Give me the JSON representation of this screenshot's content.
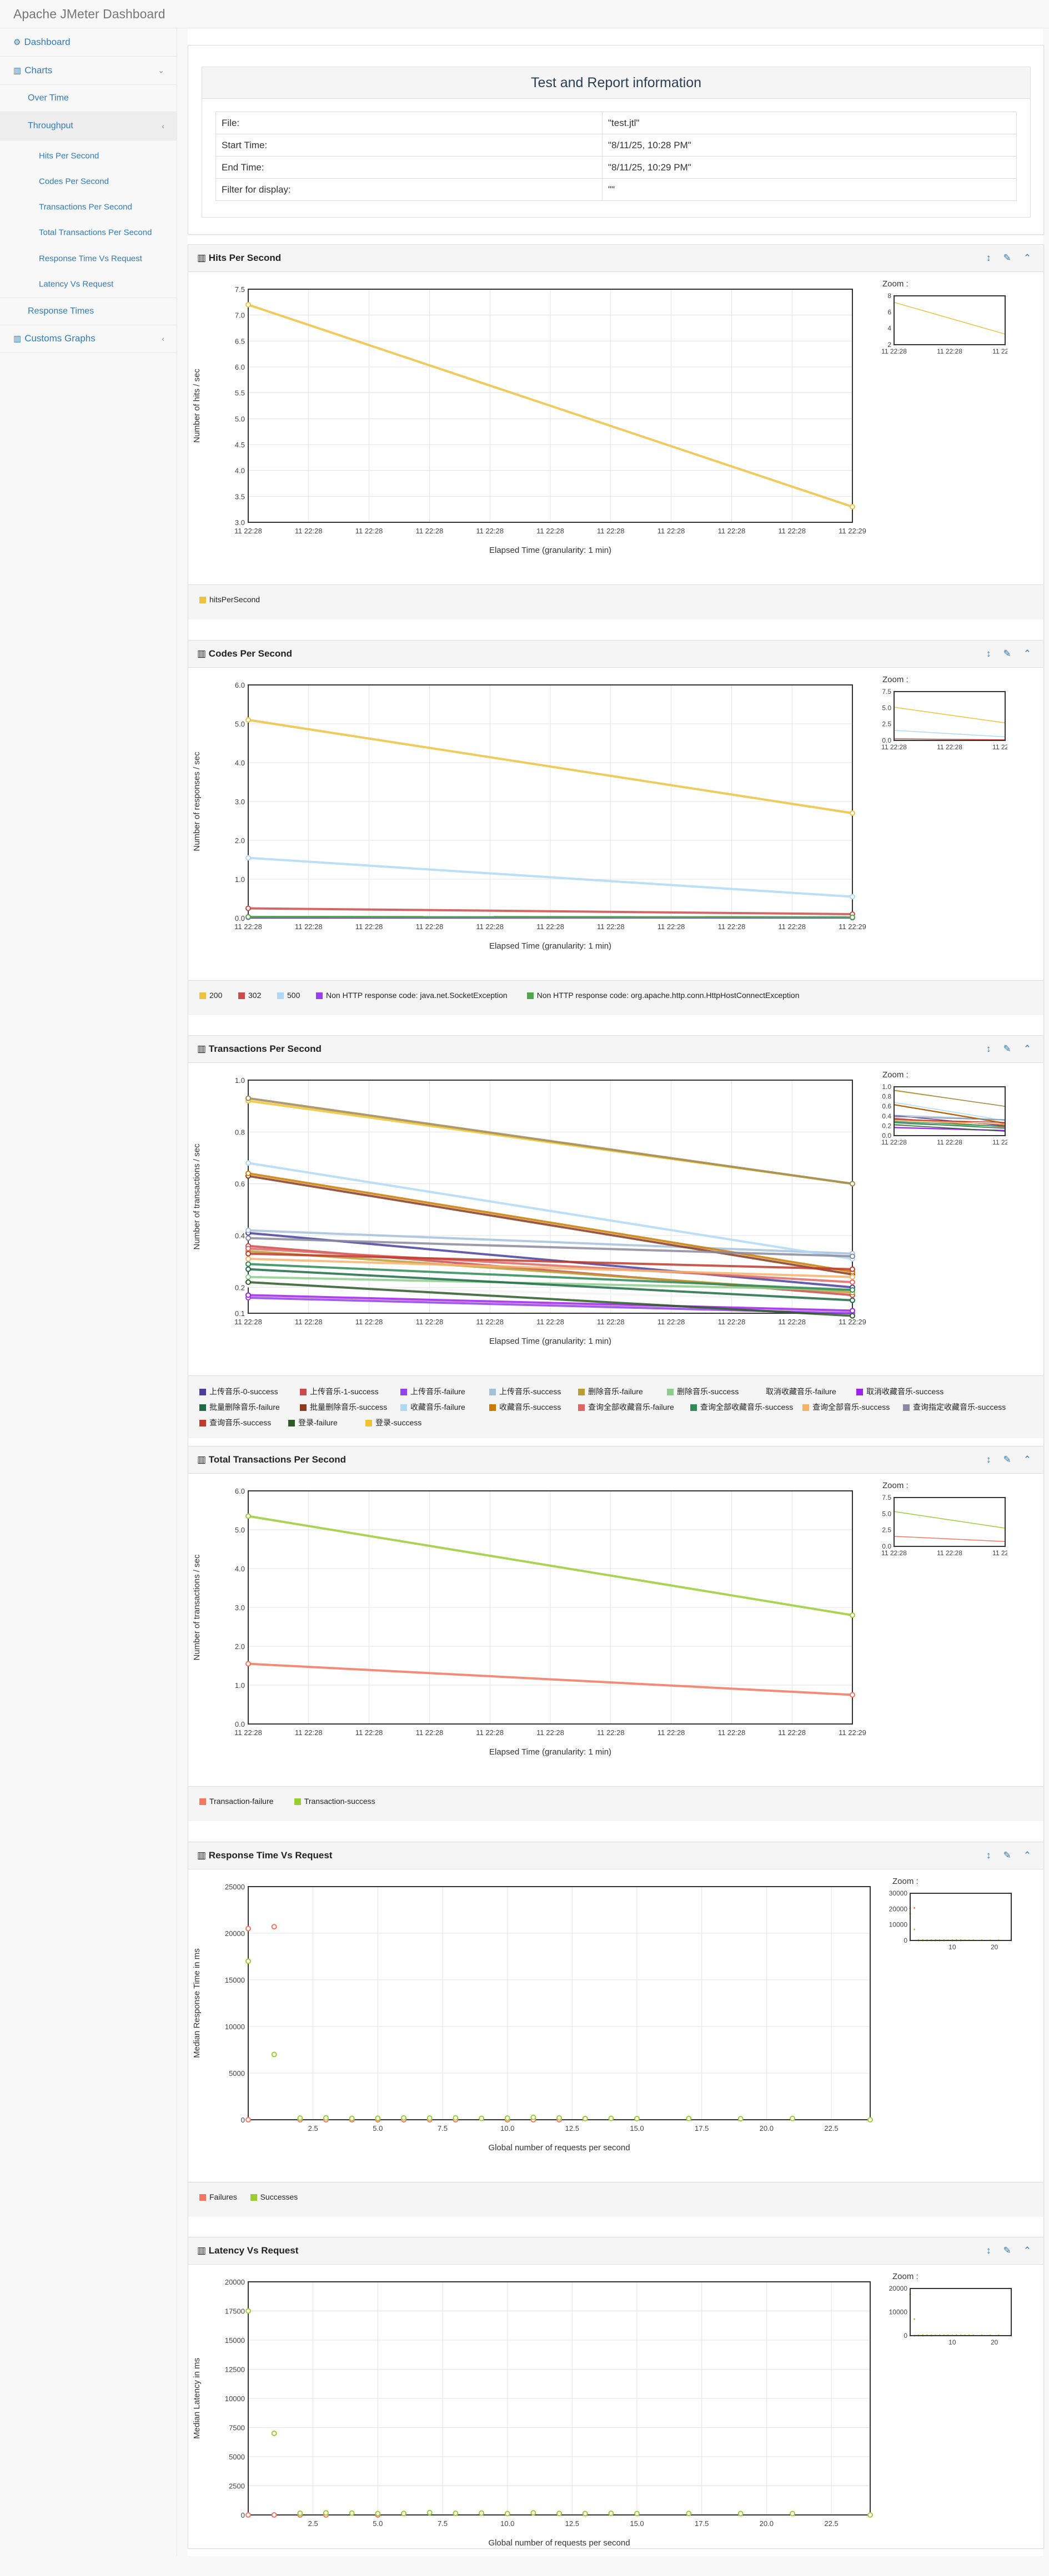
{
  "app": {
    "title": "Apache JMeter Dashboard"
  },
  "sidebar": {
    "dashboard": "Dashboard",
    "charts": "Charts",
    "over_time": "Over Time",
    "throughput": "Throughput",
    "throughput_items": [
      "Hits Per Second",
      "Codes Per Second",
      "Transactions Per Second",
      "Total Transactions Per Second",
      "Response Time Vs Request",
      "Latency Vs Request"
    ],
    "response_times": "Response Times",
    "customs_graphs": "Customs Graphs"
  },
  "info": {
    "title": "Test and Report information",
    "rows": [
      [
        "File:",
        "\"test.jtl\""
      ],
      [
        "Start Time:",
        "\"8/11/25, 10:28 PM\""
      ],
      [
        "End Time:",
        "\"8/11/25, 10:29 PM\""
      ],
      [
        "Filter for display:",
        "\"\""
      ]
    ]
  },
  "zoom_label": "Zoom :",
  "colors": {
    "accent": "#337ab7"
  },
  "chart_data": [
    {
      "id": "hits",
      "type": "line",
      "title": "Hits Per Second",
      "ylabel": "Number of hits / sec",
      "xlabel": "Elapsed Time (granularity: 1 min)",
      "ylim": [
        3,
        7.5
      ],
      "yticks": [
        "3.0",
        "3.5",
        "4.0",
        "4.5",
        "5.0",
        "5.5",
        "6.0",
        "6.5",
        "7.0",
        "7.5"
      ],
      "xticks": [
        "11 22:28",
        "11 22:28",
        "11 22:28",
        "11 22:28",
        "11 22:28",
        "11 22:28",
        "11 22:28",
        "11 22:28",
        "11 22:28",
        "11 22:28",
        "11 22:29"
      ],
      "zoom_yticks": [
        "2",
        "4",
        "6",
        "8"
      ],
      "zoom_ylim": [
        2,
        8
      ],
      "zoom_xticks": [
        "11 22:28",
        "11 22:28",
        "11 22:29"
      ],
      "series": [
        {
          "name": "hitsPerSecond",
          "color": "#edc240",
          "values": [
            7.2,
            3.3
          ]
        }
      ]
    },
    {
      "id": "codes",
      "type": "line",
      "title": "Codes Per Second",
      "ylabel": "Number of responses / sec",
      "xlabel": "Elapsed Time (granularity: 1 min)",
      "ylim": [
        0,
        6
      ],
      "yticks": [
        "0.0",
        "1.0",
        "2.0",
        "3.0",
        "4.0",
        "5.0",
        "6.0"
      ],
      "xticks": [
        "11 22:28",
        "11 22:28",
        "11 22:28",
        "11 22:28",
        "11 22:28",
        "11 22:28",
        "11 22:28",
        "11 22:28",
        "11 22:28",
        "11 22:28",
        "11 22:29"
      ],
      "zoom_yticks": [
        "0.0",
        "2.5",
        "5.0",
        "7.5"
      ],
      "zoom_ylim": [
        0,
        7.5
      ],
      "zoom_xticks": [
        "11 22:28",
        "11 22:28",
        "11 22:29"
      ],
      "series": [
        {
          "name": "200",
          "color": "#edc240",
          "values": [
            5.1,
            2.7
          ]
        },
        {
          "name": "302",
          "color": "#cb4b4b",
          "values": [
            0.25,
            0.1
          ]
        },
        {
          "name": "500",
          "color": "#afd8f8",
          "values": [
            1.55,
            0.55
          ]
        },
        {
          "name": "Non HTTP response code: java.net.SocketException",
          "color": "#9440ed",
          "values": [
            0.02,
            0.01
          ]
        },
        {
          "name": "Non HTTP response code: org.apache.http.conn.HttpHostConnectException",
          "color": "#4da74d",
          "values": [
            0.03,
            0.02
          ]
        }
      ]
    },
    {
      "id": "tps",
      "type": "line",
      "title": "Transactions Per Second",
      "ylabel": "Number of transactions / sec",
      "xlabel": "Elapsed Time (granularity: 1 min)",
      "ylim": [
        0.1,
        1.0
      ],
      "yticks": [
        "0.1",
        "0.2",
        "0.4",
        "0.6",
        "0.8",
        "1.0"
      ],
      "ytick_vals": [
        0.1,
        0.2,
        0.4,
        0.6,
        0.8,
        1.0
      ],
      "xticks": [
        "11 22:28",
        "11 22:28",
        "11 22:28",
        "11 22:28",
        "11 22:28",
        "11 22:28",
        "11 22:28",
        "11 22:28",
        "11 22:28",
        "11 22:28",
        "11 22:29"
      ],
      "zoom_yticks": [
        "0.0",
        "0.2",
        "0.4",
        "0.6",
        "0.8",
        "1.0"
      ],
      "zoom_ylim": [
        0,
        1
      ],
      "zoom_xticks": [
        "11 22:28",
        "11 22:28",
        "11 22:29"
      ],
      "series": [
        {
          "name": "上传音乐-0-success",
          "color": "#4a3f9f",
          "values": [
            0.41,
            0.2
          ]
        },
        {
          "name": "上传音乐-1-success",
          "color": "#cb4b4b",
          "values": [
            0.36,
            0.17
          ]
        },
        {
          "name": "上传音乐-failure",
          "color": "#9440ed",
          "values": [
            0.16,
            0.1
          ]
        },
        {
          "name": "上传音乐-success",
          "color": "#a3c0dc",
          "values": [
            0.42,
            0.33
          ]
        },
        {
          "name": "删除音乐-failure",
          "color": "#bd9b33",
          "values": [
            0.34,
            0.18
          ]
        },
        {
          "name": "删除音乐-success",
          "color": "#8cce8c",
          "values": [
            0.24,
            0.19
          ]
        },
        {
          "name": "取消收藏音乐-failure",
          "color": "#f5f5f5",
          "values": [
            0.21,
            0.15
          ]
        },
        {
          "name": "取消收藏音乐-success",
          "color": "#a020f0",
          "values": [
            0.17,
            0.11
          ]
        },
        {
          "name": "批量删除音乐-failure",
          "color": "#1e6b47",
          "values": [
            0.27,
            0.15
          ]
        },
        {
          "name": "批量删除音乐-success",
          "color": "#8b3a1e",
          "values": [
            0.63,
            0.25
          ]
        },
        {
          "name": "收藏音乐-failure",
          "color": "#afd8f8",
          "values": [
            0.68,
            0.31
          ]
        },
        {
          "name": "收藏音乐-success",
          "color": "#cc7a00",
          "values": [
            0.64,
            0.26
          ]
        },
        {
          "name": "查询全部收藏音乐-failure",
          "color": "#e06666",
          "values": [
            0.35,
            0.22
          ]
        },
        {
          "name": "查询全部收藏音乐-success",
          "color": "#2e8b57",
          "values": [
            0.29,
            0.19
          ]
        },
        {
          "name": "查询全部音乐-success",
          "color": "#f6b26b",
          "values": [
            0.31,
            0.24
          ]
        },
        {
          "name": "查询指定收藏音乐-success",
          "color": "#8a8a9e",
          "values": [
            0.39,
            0.32
          ]
        },
        {
          "name": "查询音乐-success",
          "color": "#c0392b",
          "values": [
            0.33,
            0.27
          ]
        },
        {
          "name": "登录-failure",
          "color": "#2d5a27",
          "values": [
            0.22,
            0.09
          ]
        },
        {
          "name": "登录-success",
          "color": "#f1c232",
          "values": [
            0.92,
            0.6
          ]
        },
        {
          "name": "",
          "color": "#9e8a55",
          "values": [
            0.93,
            0.6
          ]
        }
      ]
    },
    {
      "id": "ttps",
      "type": "line",
      "title": "Total Transactions Per Second",
      "ylabel": "Number of transactions / sec",
      "xlabel": "Elapsed Time (granularity: 1 min)",
      "ylim": [
        0,
        6
      ],
      "yticks": [
        "0.0",
        "1.0",
        "2.0",
        "3.0",
        "4.0",
        "5.0",
        "6.0"
      ],
      "xticks": [
        "11 22:28",
        "11 22:28",
        "11 22:28",
        "11 22:28",
        "11 22:28",
        "11 22:28",
        "11 22:28",
        "11 22:28",
        "11 22:28",
        "11 22:28",
        "11 22:29"
      ],
      "zoom_yticks": [
        "0.0",
        "2.5",
        "5.0",
        "7.5"
      ],
      "zoom_ylim": [
        0,
        7.5
      ],
      "zoom_xticks": [
        "11 22:28",
        "11 22:28",
        "11 22:29"
      ],
      "series": [
        {
          "name": "Transaction-failure",
          "color": "#f47560",
          "values": [
            1.55,
            0.75
          ]
        },
        {
          "name": "Transaction-success",
          "color": "#9acd32",
          "values": [
            5.35,
            2.8
          ]
        }
      ]
    },
    {
      "id": "rtvr",
      "type": "scatter",
      "title": "Response Time Vs Request",
      "ylabel": "Median Response Time in ms",
      "xlabel": "Global number of requests per second",
      "xlim": [
        0,
        24
      ],
      "ylim": [
        0,
        25000
      ],
      "yticks": [
        "0",
        "5000",
        "10000",
        "15000",
        "20000",
        "25000"
      ],
      "ytick_vals": [
        0,
        5000,
        10000,
        15000,
        20000,
        25000
      ],
      "xticks": [
        "2.5",
        "5.0",
        "7.5",
        "10.0",
        "12.5",
        "15.0",
        "17.5",
        "20.0",
        "22.5"
      ],
      "xtick_vals": [
        2.5,
        5,
        7.5,
        10,
        12.5,
        15,
        17.5,
        20,
        22.5
      ],
      "zoom_yticks": [
        "0",
        "10000",
        "20000",
        "30000"
      ],
      "zoom_ylim": [
        0,
        30000
      ],
      "zoom_xticks": [
        "10",
        "20"
      ],
      "zoom_xtick_vals": [
        10,
        20
      ],
      "series": [
        {
          "name": "Failures",
          "color": "#f47560",
          "points": [
            [
              0,
              1
            ],
            [
              0,
              20500
            ],
            [
              1,
              20700
            ],
            [
              2,
              0
            ],
            [
              3,
              0
            ],
            [
              4,
              0
            ],
            [
              5,
              0
            ],
            [
              6,
              0
            ],
            [
              7,
              0
            ],
            [
              8,
              0
            ],
            [
              10,
              0
            ],
            [
              11,
              0
            ],
            [
              12,
              0
            ]
          ]
        },
        {
          "name": "Successes",
          "color": "#9acd32",
          "points": [
            [
              0,
              17000
            ],
            [
              1,
              7000
            ],
            [
              2,
              180
            ],
            [
              3,
              200
            ],
            [
              4,
              150
            ],
            [
              5,
              160
            ],
            [
              6,
              200
            ],
            [
              7,
              180
            ],
            [
              8,
              200
            ],
            [
              9,
              150
            ],
            [
              10,
              180
            ],
            [
              11,
              260
            ],
            [
              12,
              200
            ],
            [
              13,
              130
            ],
            [
              14,
              150
            ],
            [
              15,
              130
            ],
            [
              17,
              140
            ],
            [
              19,
              110
            ],
            [
              21,
              140
            ],
            [
              24,
              0
            ]
          ]
        }
      ]
    },
    {
      "id": "lvr",
      "type": "scatter",
      "title": "Latency Vs Request",
      "ylabel": "Median Latency in ms",
      "xlabel": "Global number of requests per second",
      "xlim": [
        0,
        24
      ],
      "ylim": [
        0,
        20000
      ],
      "yticks": [
        "0",
        "2500",
        "5000",
        "7500",
        "10000",
        "12500",
        "15000",
        "17500",
        "20000"
      ],
      "ytick_vals": [
        0,
        2500,
        5000,
        7500,
        10000,
        12500,
        15000,
        17500,
        20000
      ],
      "xticks": [
        "2.5",
        "5.0",
        "7.5",
        "10.0",
        "12.5",
        "15.0",
        "17.5",
        "20.0",
        "22.5"
      ],
      "xtick_vals": [
        2.5,
        5,
        7.5,
        10,
        12.5,
        15,
        17.5,
        20,
        22.5
      ],
      "zoom_yticks": [
        "0",
        "10000",
        "20000"
      ],
      "zoom_ylim": [
        0,
        20000
      ],
      "zoom_xticks": [
        "10",
        "20"
      ],
      "zoom_xtick_vals": [
        10,
        20
      ],
      "series": [
        {
          "name": "Failures",
          "color": "#f47560",
          "points": [
            [
              0,
              0
            ],
            [
              1,
              0
            ],
            [
              2,
              0
            ],
            [
              3,
              0
            ],
            [
              5,
              0
            ]
          ]
        },
        {
          "name": "Successes",
          "color": "#9acd32",
          "points": [
            [
              0,
              17500
            ],
            [
              1,
              7000
            ],
            [
              2,
              150
            ],
            [
              3,
              180
            ],
            [
              4,
              160
            ],
            [
              5,
              120
            ],
            [
              6,
              130
            ],
            [
              7,
              200
            ],
            [
              8,
              140
            ],
            [
              9,
              160
            ],
            [
              10,
              120
            ],
            [
              11,
              180
            ],
            [
              12,
              130
            ],
            [
              13,
              120
            ],
            [
              14,
              140
            ],
            [
              15,
              120
            ],
            [
              17,
              130
            ],
            [
              19,
              120
            ],
            [
              21,
              120
            ],
            [
              24,
              0
            ]
          ]
        }
      ]
    }
  ]
}
